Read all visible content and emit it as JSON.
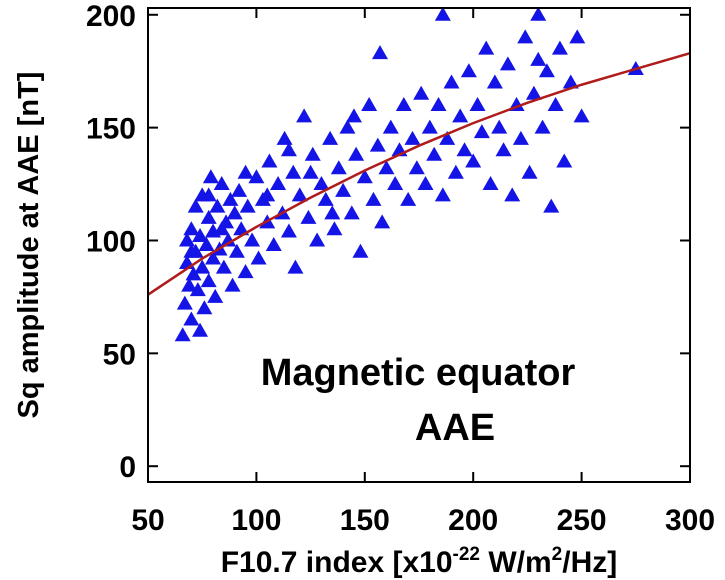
{
  "chart_data": {
    "type": "scatter",
    "xlabel_parts": [
      "F10.7 index [x10",
      "-22",
      " W/m",
      "2",
      "/Hz]"
    ],
    "ylabel": "Sq amplitude at AAE [nT]",
    "annotation": [
      "Magnetic equator",
      "AAE"
    ],
    "xlim": [
      50,
      300
    ],
    "ylim": [
      -7,
      203
    ],
    "xticks": [
      50,
      100,
      150,
      200,
      250,
      300
    ],
    "yticks": [
      0,
      50,
      100,
      150,
      200
    ],
    "series": [
      {
        "type": "scatter",
        "color": "#1414e6",
        "x": [
          66,
          67,
          68,
          68,
          69,
          70,
          70,
          71,
          72,
          72,
          73,
          74,
          75,
          75,
          76,
          77,
          78,
          78,
          79,
          80,
          80,
          81,
          82,
          83,
          84,
          85,
          86,
          87,
          88,
          89,
          90,
          91,
          92,
          93,
          95,
          96,
          98,
          100,
          101,
          103,
          105,
          106,
          108,
          110,
          112,
          113,
          115,
          117,
          118,
          120,
          122,
          124,
          126,
          128,
          130,
          132,
          134,
          136,
          138,
          140,
          142,
          144,
          146,
          148,
          150,
          152,
          154,
          156,
          158,
          160,
          162,
          164,
          166,
          168,
          170,
          172,
          174,
          176,
          178,
          180,
          182,
          184,
          186,
          188,
          190,
          192,
          194,
          196,
          198,
          200,
          202,
          204,
          206,
          208,
          210,
          212,
          214,
          216,
          218,
          220,
          222,
          224,
          226,
          228,
          230,
          232,
          234,
          236,
          238,
          240,
          242,
          245,
          248,
          250,
          157,
          186,
          230,
          275,
          70,
          74,
          78,
          84,
          95,
          105,
          115,
          125,
          135,
          145
        ],
        "values": [
          58,
          72,
          90,
          100,
          80,
          65,
          105,
          85,
          95,
          115,
          78,
          102,
          88,
          120,
          70,
          98,
          110,
          82,
          128,
          92,
          104,
          75,
          115,
          96,
          125,
          88,
          108,
          100,
          118,
          80,
          112,
          95,
          122,
          105,
          86,
          115,
          100,
          128,
          92,
          118,
          108,
          135,
          98,
          125,
          112,
          145,
          104,
          130,
          88,
          120,
          155,
          110,
          138,
          100,
          125,
          118,
          145,
          105,
          132,
          122,
          150,
          112,
          138,
          95,
          128,
          160,
          118,
          142,
          108,
          132,
          150,
          125,
          140,
          160,
          118,
          145,
          132,
          165,
          125,
          150,
          138,
          160,
          120,
          145,
          170,
          130,
          155,
          140,
          175,
          135,
          160,
          148,
          185,
          125,
          170,
          150,
          140,
          178,
          120,
          160,
          145,
          190,
          130,
          165,
          200,
          150,
          175,
          115,
          160,
          185,
          135,
          170,
          190,
          155,
          183,
          200,
          180,
          176,
          95,
          60,
          120,
          105,
          130,
          120,
          140,
          130,
          112,
          155
        ]
      },
      {
        "type": "line",
        "color": "#b01c1c",
        "x": [
          50,
          75,
          100,
          125,
          150,
          175,
          200,
          225,
          250,
          275,
          300
        ],
        "values": [
          76,
          92,
          106,
          119,
          131,
          142,
          152,
          161,
          169,
          176,
          183
        ]
      }
    ]
  }
}
